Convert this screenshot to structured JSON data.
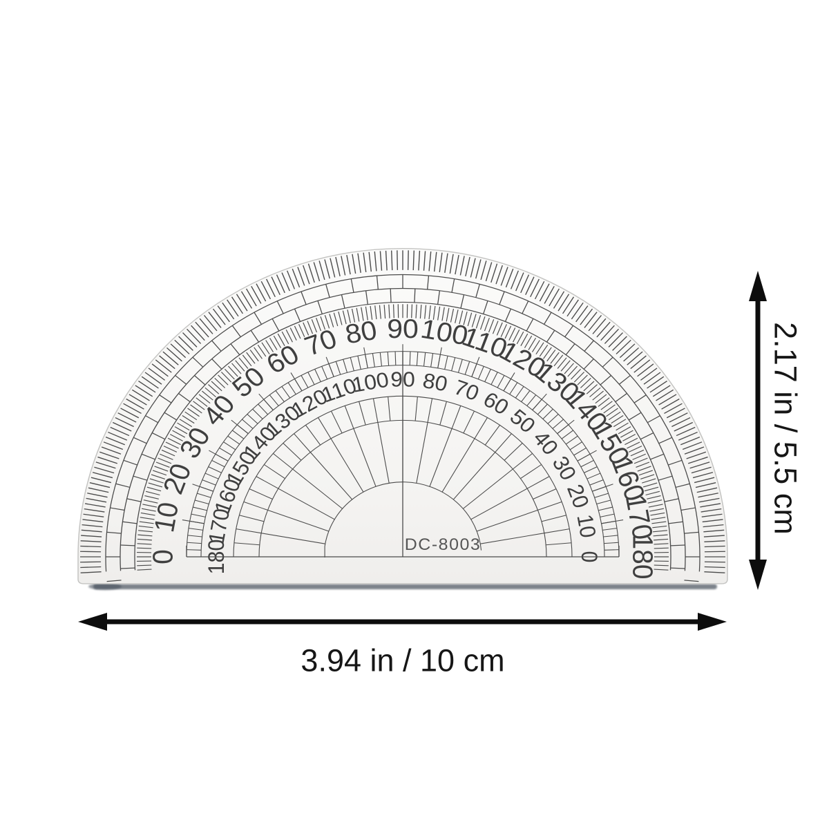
{
  "protractor": {
    "model": "DC-8003",
    "outer_scale": [
      "0",
      "10",
      "20",
      "30",
      "40",
      "50",
      "60",
      "70",
      "80",
      "90",
      "100",
      "110",
      "120",
      "130",
      "140",
      "150",
      "160",
      "170",
      "180"
    ],
    "inner_scale": [
      "180",
      "170",
      "160",
      "150",
      "140",
      "130",
      "120",
      "110",
      "100",
      "90",
      "80",
      "70",
      "60",
      "50",
      "40",
      "30",
      "20",
      "10",
      "0"
    ]
  },
  "dimensions": {
    "height_label": "2.17 in / 5.5 cm",
    "width_label": "3.94 in / 10 cm"
  },
  "colors": {
    "print": "#4a4a4a",
    "numerals": "#3f3f3f",
    "arrow": "#0d0d0d",
    "plastic_top": "#fbfbfa",
    "plastic_bottom": "#efeeec",
    "plastic_edge": "#c4c4c2",
    "shadow": "#59606b"
  }
}
